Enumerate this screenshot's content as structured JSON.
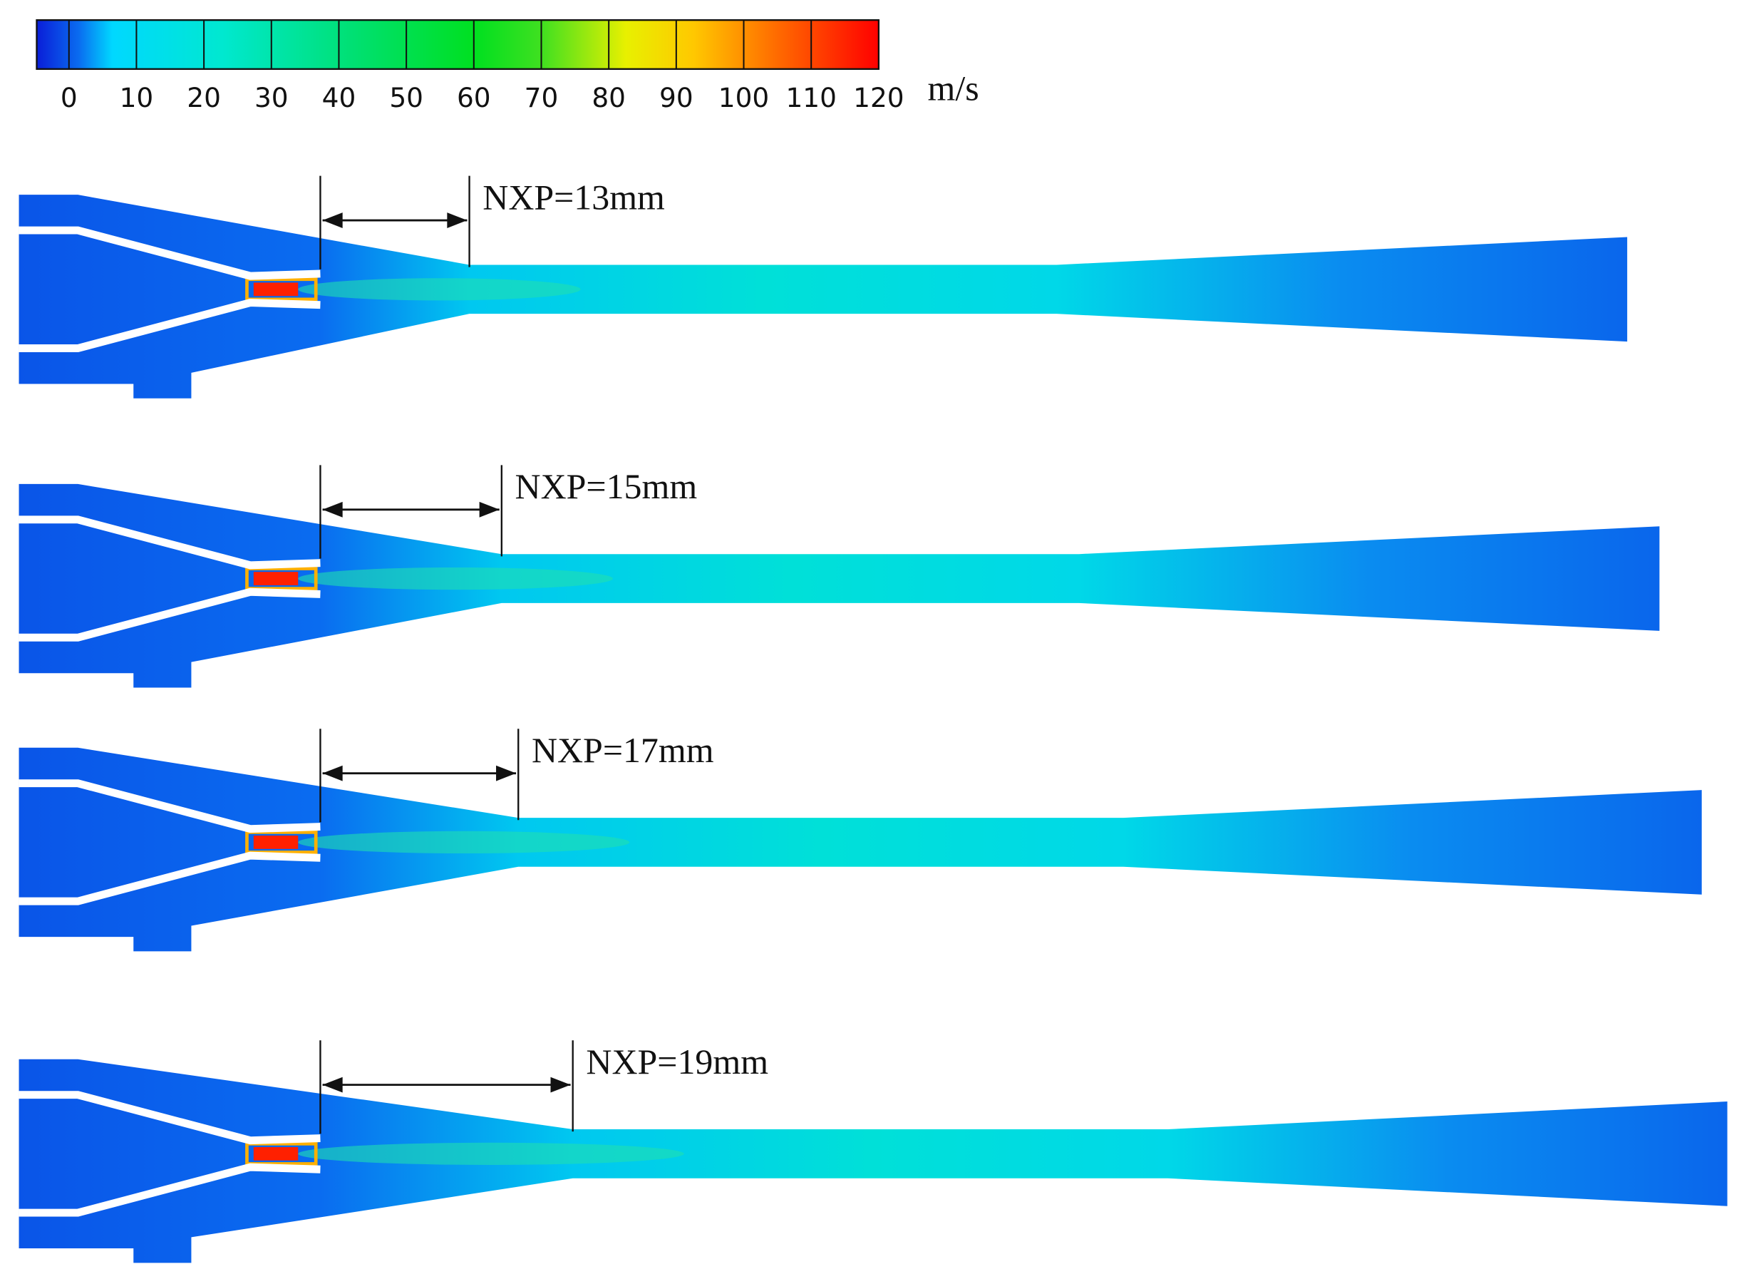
{
  "colorbar": {
    "ticks": [
      0,
      10,
      20,
      30,
      40,
      50,
      60,
      70,
      80,
      90,
      100,
      110,
      120
    ],
    "unit": "m/s"
  },
  "panels": [
    {
      "label": "NXP=13mm"
    },
    {
      "label": "NXP=15mm"
    },
    {
      "label": "NXP=17mm"
    },
    {
      "label": "NXP=19mm"
    }
  ]
}
